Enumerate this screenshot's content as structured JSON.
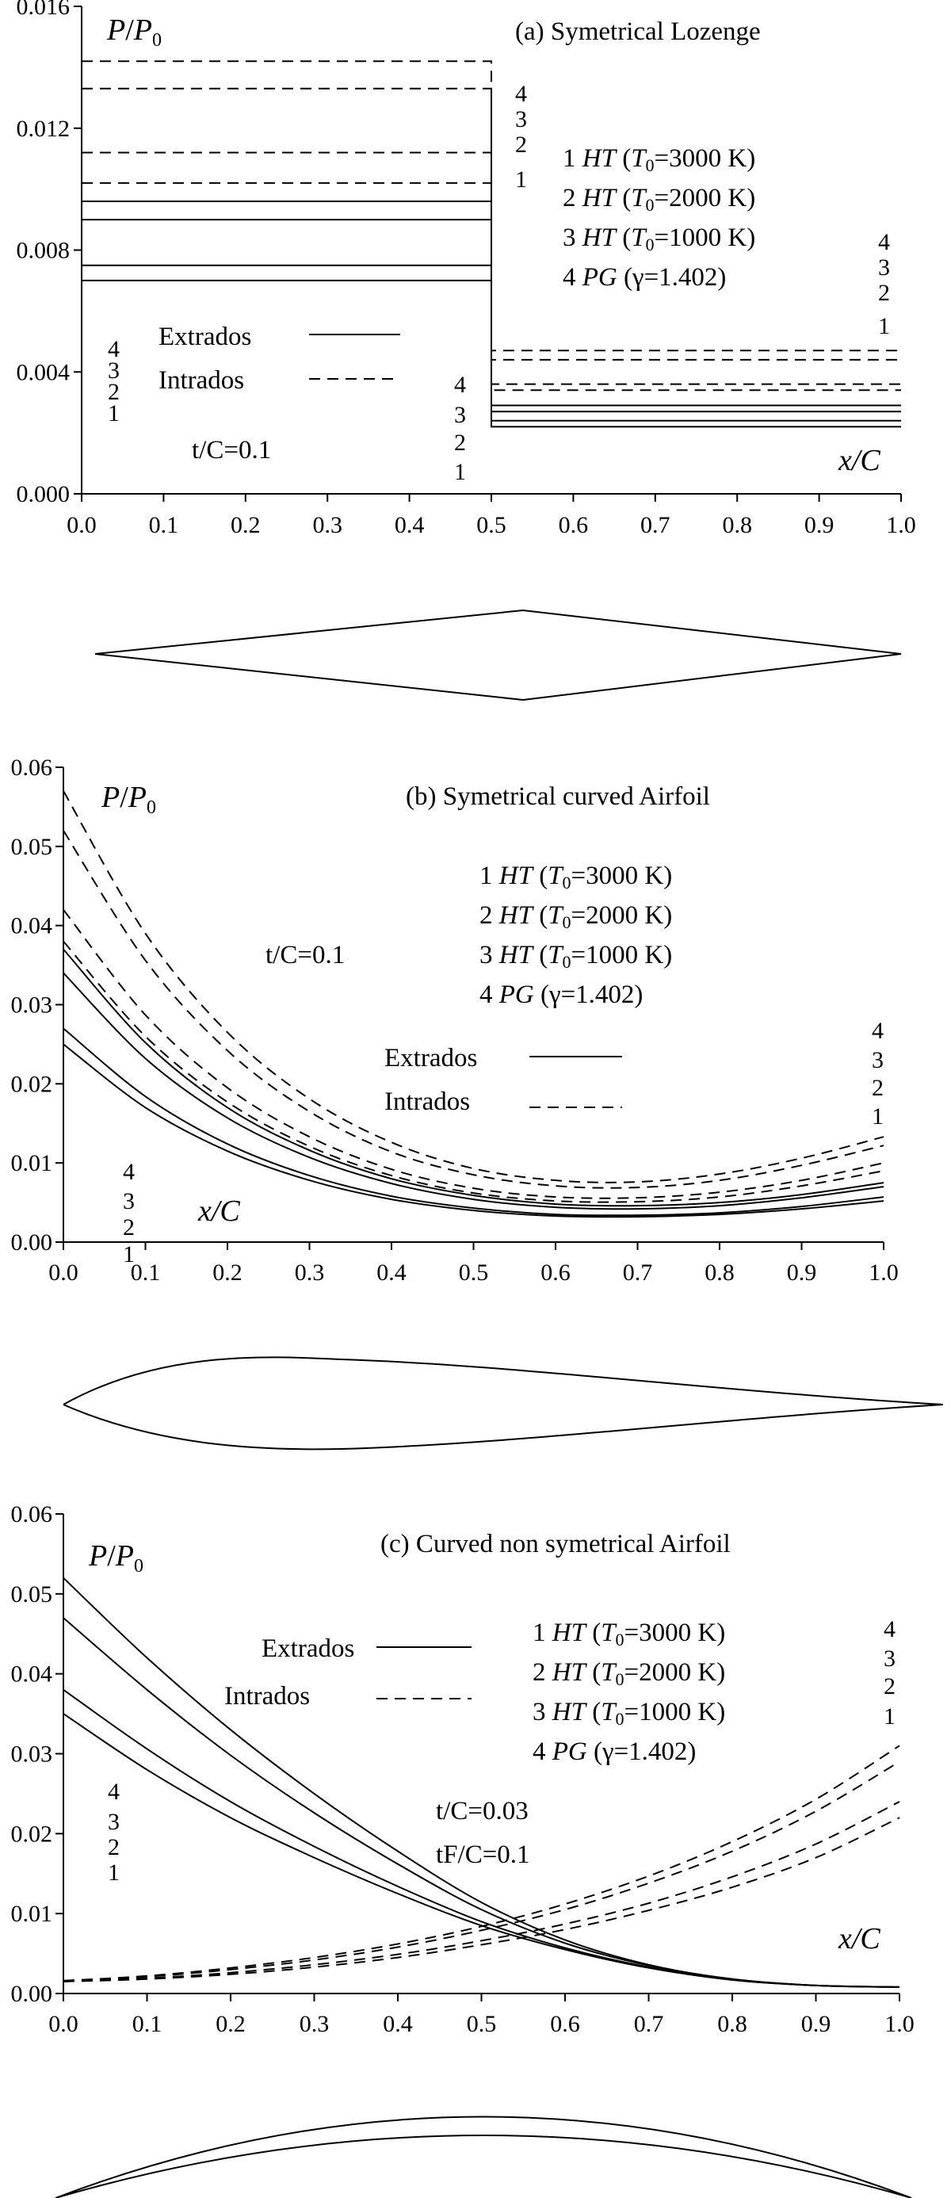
{
  "chart_data": [
    {
      "id": "a",
      "type": "line",
      "title": "(a)  Symetrical Lozenge",
      "ylabel_parts": [
        "P",
        "/",
        "P",
        "0"
      ],
      "xlabel": "x/C",
      "thickness_label": "t/C=0.1",
      "xlim": [
        0.0,
        1.0
      ],
      "ylim": [
        0.0,
        0.016
      ],
      "xticks": [
        "0.0",
        "0.1",
        "0.2",
        "0.3",
        "0.4",
        "0.5",
        "0.6",
        "0.7",
        "0.8",
        "0.9",
        "1.0"
      ],
      "yticks": [
        "0.000",
        "0.004",
        "0.008",
        "0.012",
        "0.016"
      ],
      "legend_cases": [
        {
          "num": "1",
          "model": "HT",
          "param": "(T0=3000 K)"
        },
        {
          "num": "2",
          "model": "HT",
          "param": "(T0=2000 K)"
        },
        {
          "num": "3",
          "model": "HT",
          "param": "(T0=1000 K)"
        },
        {
          "num": "4",
          "model": "PG",
          "param": "(γ=1.402)"
        }
      ],
      "legend_lines": [
        {
          "label": "Extrados",
          "style": "solid"
        },
        {
          "label": "Intrados",
          "style": "dashed"
        }
      ],
      "curve_numbers": [
        "4",
        "3",
        "2",
        "1"
      ],
      "series": [
        {
          "style": "solid",
          "case": "1",
          "x": [
            0,
            0.5,
            0.5,
            1
          ],
          "y": [
            0.007,
            0.007,
            0.0022,
            0.0022
          ]
        },
        {
          "style": "solid",
          "case": "2",
          "x": [
            0,
            0.5,
            0.5,
            1
          ],
          "y": [
            0.0075,
            0.0075,
            0.0024,
            0.0024
          ]
        },
        {
          "style": "solid",
          "case": "3",
          "x": [
            0,
            0.5,
            0.5,
            1
          ],
          "y": [
            0.009,
            0.009,
            0.0027,
            0.0027
          ]
        },
        {
          "style": "solid",
          "case": "4",
          "x": [
            0,
            0.5,
            0.5,
            1
          ],
          "y": [
            0.0096,
            0.0096,
            0.0029,
            0.0029
          ]
        },
        {
          "style": "dashed",
          "case": "1",
          "x": [
            0,
            0.5,
            0.5,
            1
          ],
          "y": [
            0.0102,
            0.0102,
            0.0034,
            0.0034
          ]
        },
        {
          "style": "dashed",
          "case": "2",
          "x": [
            0,
            0.5,
            0.5,
            1
          ],
          "y": [
            0.0112,
            0.0112,
            0.0036,
            0.0036
          ]
        },
        {
          "style": "dashed",
          "case": "3",
          "x": [
            0,
            0.5,
            0.5,
            1
          ],
          "y": [
            0.0133,
            0.0133,
            0.0044,
            0.0044
          ]
        },
        {
          "style": "dashed",
          "case": "4",
          "x": [
            0,
            0.5,
            0.5,
            1
          ],
          "y": [
            0.0142,
            0.0142,
            0.0047,
            0.0047
          ]
        }
      ]
    },
    {
      "id": "b",
      "type": "line",
      "title": "(b)  Symetrical curved Airfoil",
      "ylabel_parts": [
        "P",
        "/",
        "P",
        "0"
      ],
      "xlabel": "x/C",
      "thickness_label": "t/C=0.1",
      "xlim": [
        0.0,
        1.0
      ],
      "ylim": [
        0.0,
        0.06
      ],
      "xticks": [
        "0.0",
        "0.1",
        "0.2",
        "0.3",
        "0.4",
        "0.5",
        "0.6",
        "0.7",
        "0.8",
        "0.9",
        "1.0"
      ],
      "yticks": [
        "0.00",
        "0.01",
        "0.02",
        "0.03",
        "0.04",
        "0.05",
        "0.06"
      ],
      "legend_cases": [
        {
          "num": "1",
          "model": "HT",
          "param": "(T0=3000 K)"
        },
        {
          "num": "2",
          "model": "HT",
          "param": "(T0=2000 K)"
        },
        {
          "num": "3",
          "model": "HT",
          "param": "(T0=1000 K)"
        },
        {
          "num": "4",
          "model": "PG",
          "param": "(γ=1.402)"
        }
      ],
      "legend_lines": [
        {
          "label": "Extrados",
          "style": "solid"
        },
        {
          "label": "Intrados",
          "style": "dashed"
        }
      ],
      "curve_numbers": [
        "4",
        "3",
        "2",
        "1"
      ],
      "series": [
        {
          "style": "solid",
          "case": "1",
          "x": [
            0,
            0.1,
            0.2,
            0.3,
            0.4,
            0.5,
            0.6,
            0.7,
            0.8,
            0.9,
            1.0
          ],
          "y": [
            0.025,
            0.017,
            0.0115,
            0.0078,
            0.0054,
            0.004,
            0.0033,
            0.0032,
            0.0035,
            0.0042,
            0.0052
          ]
        },
        {
          "style": "solid",
          "case": "2",
          "x": [
            0,
            0.1,
            0.2,
            0.3,
            0.4,
            0.5,
            0.6,
            0.7,
            0.8,
            0.9,
            1.0
          ],
          "y": [
            0.027,
            0.0184,
            0.0124,
            0.0084,
            0.0058,
            0.0043,
            0.0035,
            0.0034,
            0.0037,
            0.0045,
            0.0057
          ]
        },
        {
          "style": "solid",
          "case": "3",
          "x": [
            0,
            0.1,
            0.2,
            0.3,
            0.4,
            0.5,
            0.6,
            0.7,
            0.8,
            0.9,
            1.0
          ],
          "y": [
            0.034,
            0.0232,
            0.0157,
            0.0107,
            0.0074,
            0.0054,
            0.0044,
            0.0042,
            0.0046,
            0.0056,
            0.007
          ]
        },
        {
          "style": "solid",
          "case": "4",
          "x": [
            0,
            0.1,
            0.2,
            0.3,
            0.4,
            0.5,
            0.6,
            0.7,
            0.8,
            0.9,
            1.0
          ],
          "y": [
            0.037,
            0.0252,
            0.017,
            0.0116,
            0.008,
            0.0059,
            0.0048,
            0.0046,
            0.005,
            0.006,
            0.0075
          ]
        },
        {
          "style": "dashed",
          "case": "1",
          "x": [
            0,
            0.1,
            0.2,
            0.3,
            0.4,
            0.5,
            0.6,
            0.7,
            0.8,
            0.9,
            1.0
          ],
          "y": [
            0.038,
            0.026,
            0.0177,
            0.0121,
            0.0084,
            0.0062,
            0.0052,
            0.0051,
            0.0057,
            0.0071,
            0.009
          ]
        },
        {
          "style": "dashed",
          "case": "2",
          "x": [
            0,
            0.1,
            0.2,
            0.3,
            0.4,
            0.5,
            0.6,
            0.7,
            0.8,
            0.9,
            1.0
          ],
          "y": [
            0.042,
            0.0287,
            0.0195,
            0.0133,
            0.0092,
            0.0068,
            0.0057,
            0.0056,
            0.0063,
            0.0078,
            0.01
          ]
        },
        {
          "style": "dashed",
          "case": "3",
          "x": [
            0,
            0.1,
            0.2,
            0.3,
            0.4,
            0.5,
            0.6,
            0.7,
            0.8,
            0.9,
            1.0
          ],
          "y": [
            0.052,
            0.0356,
            0.0242,
            0.0165,
            0.0114,
            0.0085,
            0.0071,
            0.0069,
            0.0078,
            0.0097,
            0.0122
          ]
        },
        {
          "style": "dashed",
          "case": "4",
          "x": [
            0,
            0.1,
            0.2,
            0.3,
            0.4,
            0.5,
            0.6,
            0.7,
            0.8,
            0.9,
            1.0
          ],
          "y": [
            0.057,
            0.039,
            0.0265,
            0.0181,
            0.0126,
            0.0093,
            0.0078,
            0.0076,
            0.0086,
            0.0106,
            0.0133
          ]
        }
      ]
    },
    {
      "id": "c",
      "type": "line",
      "title": "(c)  Curved non symetrical Airfoil",
      "ylabel_parts": [
        "P",
        "/",
        "P",
        "0"
      ],
      "xlabel": "x/C",
      "thickness_label": "t/C=0.03",
      "thickness_label2": "tF/C=0.1",
      "xlim": [
        0.0,
        1.0
      ],
      "ylim": [
        0.0,
        0.06
      ],
      "xticks": [
        "0.0",
        "0.1",
        "0.2",
        "0.3",
        "0.4",
        "0.5",
        "0.6",
        "0.7",
        "0.8",
        "0.9",
        "1.0"
      ],
      "yticks": [
        "0.00",
        "0.01",
        "0.02",
        "0.03",
        "0.04",
        "0.05",
        "0.06"
      ],
      "legend_cases": [
        {
          "num": "1",
          "model": "HT",
          "param": "(T0=3000 K)"
        },
        {
          "num": "2",
          "model": "HT",
          "param": "(T0=2000 K)"
        },
        {
          "num": "3",
          "model": "HT",
          "param": "(T0=1000 K)"
        },
        {
          "num": "4",
          "model": "PG",
          "param": "(γ=1.402)"
        }
      ],
      "legend_lines": [
        {
          "label": "Extrados",
          "style": "solid"
        },
        {
          "label": "Intrados",
          "style": "dashed"
        }
      ],
      "curve_numbers": [
        "4",
        "3",
        "2",
        "1"
      ],
      "series": [
        {
          "style": "solid",
          "case": "1",
          "x": [
            0,
            0.1,
            0.2,
            0.3,
            0.4,
            0.5,
            0.6,
            0.7,
            0.8,
            0.9,
            1.0
          ],
          "y": [
            0.035,
            0.028,
            0.022,
            0.017,
            0.0125,
            0.0085,
            0.0055,
            0.0032,
            0.0017,
            0.001,
            0.0008
          ]
        },
        {
          "style": "solid",
          "case": "2",
          "x": [
            0,
            0.1,
            0.2,
            0.3,
            0.4,
            0.5,
            0.6,
            0.7,
            0.8,
            0.9,
            1.0
          ],
          "y": [
            0.038,
            0.0306,
            0.024,
            0.0184,
            0.0134,
            0.009,
            0.0057,
            0.0033,
            0.0017,
            0.001,
            0.0008
          ]
        },
        {
          "style": "solid",
          "case": "3",
          "x": [
            0,
            0.1,
            0.2,
            0.3,
            0.4,
            0.5,
            0.6,
            0.7,
            0.8,
            0.9,
            1.0
          ],
          "y": [
            0.047,
            0.038,
            0.0298,
            0.0226,
            0.0162,
            0.0105,
            0.0063,
            0.0035,
            0.0018,
            0.001,
            0.0008
          ]
        },
        {
          "style": "solid",
          "case": "4",
          "x": [
            0,
            0.1,
            0.2,
            0.3,
            0.4,
            0.5,
            0.6,
            0.7,
            0.8,
            0.9,
            1.0
          ],
          "y": [
            0.052,
            0.042,
            0.033,
            0.025,
            0.0178,
            0.0114,
            0.0067,
            0.0036,
            0.0018,
            0.001,
            0.0008
          ]
        },
        {
          "style": "dashed",
          "case": "1",
          "x": [
            0,
            0.1,
            0.2,
            0.3,
            0.4,
            0.5,
            0.6,
            0.7,
            0.8,
            0.9,
            1.0
          ],
          "y": [
            0.0015,
            0.0018,
            0.0024,
            0.0033,
            0.0045,
            0.0061,
            0.008,
            0.0104,
            0.0133,
            0.017,
            0.022
          ]
        },
        {
          "style": "dashed",
          "case": "2",
          "x": [
            0,
            0.1,
            0.2,
            0.3,
            0.4,
            0.5,
            0.6,
            0.7,
            0.8,
            0.9,
            1.0
          ],
          "y": [
            0.0015,
            0.0019,
            0.0026,
            0.0036,
            0.0049,
            0.0066,
            0.0087,
            0.0113,
            0.0146,
            0.0187,
            0.024
          ]
        },
        {
          "style": "dashed",
          "case": "3",
          "x": [
            0,
            0.1,
            0.2,
            0.3,
            0.4,
            0.5,
            0.6,
            0.7,
            0.8,
            0.9,
            1.0
          ],
          "y": [
            0.0016,
            0.0021,
            0.003,
            0.0042,
            0.0058,
            0.0079,
            0.0105,
            0.0138,
            0.0178,
            0.0228,
            0.029
          ]
        },
        {
          "style": "dashed",
          "case": "4",
          "x": [
            0,
            0.1,
            0.2,
            0.3,
            0.4,
            0.5,
            0.6,
            0.7,
            0.8,
            0.9,
            1.0
          ],
          "y": [
            0.0016,
            0.0022,
            0.0032,
            0.0045,
            0.0062,
            0.0084,
            0.0112,
            0.0147,
            0.019,
            0.0243,
            0.031
          ]
        }
      ]
    }
  ]
}
